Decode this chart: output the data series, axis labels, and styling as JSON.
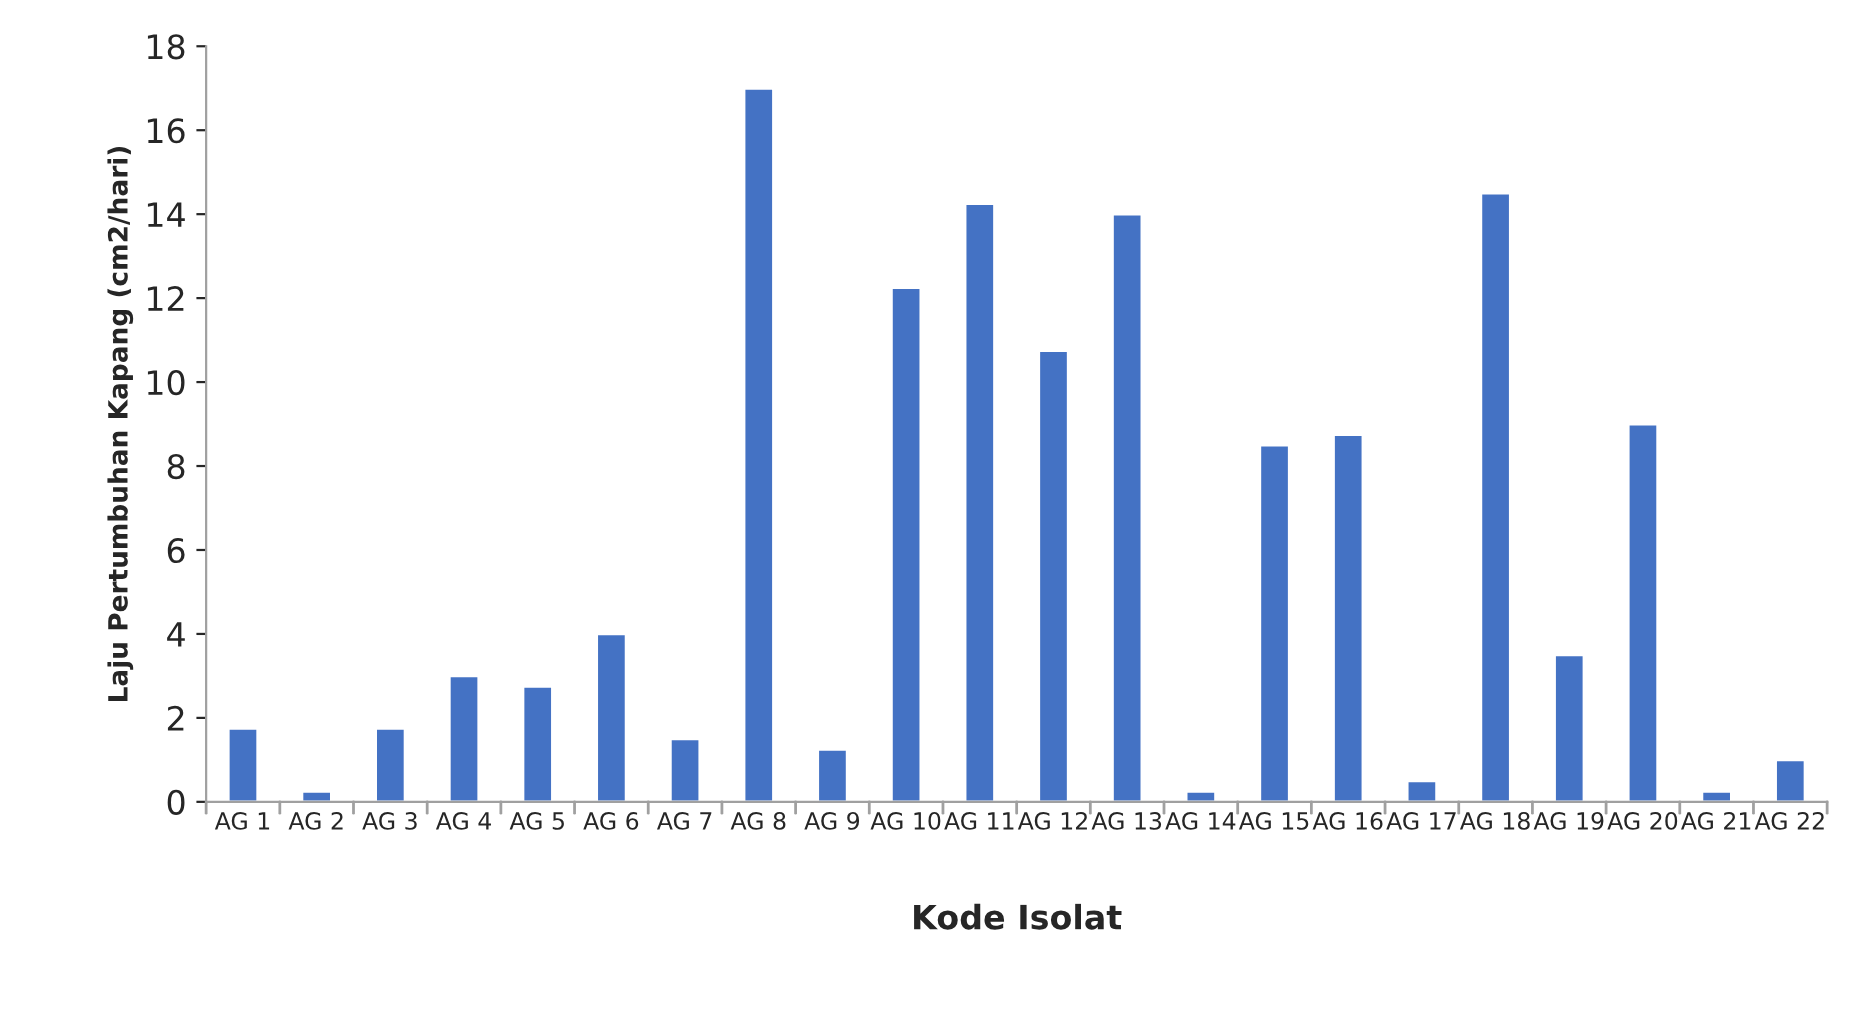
{
  "chart_data": {
    "type": "bar",
    "xlabel": "Kode Isolat",
    "ylabel": "Laju Pertumbuhan Kapang (cm2/hari)",
    "categories": [
      "AG 1",
      "AG 2",
      "AG 3",
      "AG 4",
      "AG 5",
      "AG 6",
      "AG 7",
      "AG 8",
      "AG 9",
      "AG 10",
      "AG 11",
      "AG 12",
      "AG 13",
      "AG 14",
      "AG 15",
      "AG 16",
      "AG 17",
      "AG 18",
      "AG 19",
      "AG 20",
      "AG 21",
      "AG 22"
    ],
    "values": [
      1.75,
      0.25,
      1.75,
      3.0,
      2.75,
      4.0,
      1.5,
      17.0,
      1.25,
      12.25,
      14.25,
      10.75,
      14.0,
      0.25,
      8.5,
      8.75,
      0.5,
      14.5,
      3.5,
      9.0,
      0.25,
      1.0
    ],
    "color": "#4472c4",
    "ylim": [
      0,
      18
    ],
    "yticks": [
      0,
      2,
      4,
      6,
      8,
      10,
      12,
      14,
      16,
      18
    ],
    "grid": false,
    "legend": false
  }
}
